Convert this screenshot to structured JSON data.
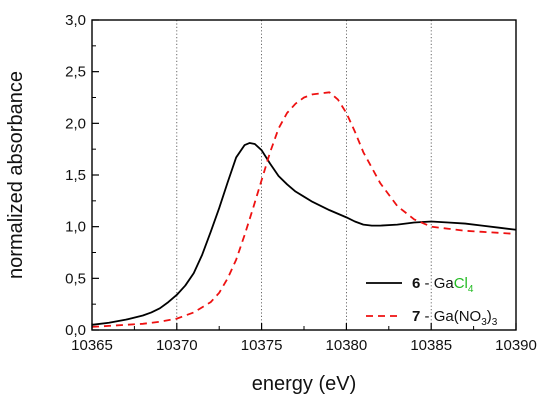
{
  "chart_data": {
    "type": "line",
    "title": "",
    "xlabel": "energy (eV)",
    "ylabel": "normalized absorbance",
    "xlim": [
      10365,
      10390
    ],
    "ylim": [
      0,
      3
    ],
    "xticks": [
      10365,
      10370,
      10375,
      10380,
      10385,
      10390
    ],
    "xtick_labels": [
      "10365",
      "10370",
      "10375",
      "10380",
      "10385",
      "10390"
    ],
    "yticks": [
      0,
      0.5,
      1,
      1.5,
      2,
      2.5,
      3
    ],
    "ytick_labels": [
      "0,0",
      "0,5",
      "1,0",
      "1,5",
      "2,0",
      "2,5",
      "3,0"
    ],
    "vertical_gridlines": [
      10370,
      10375,
      10380,
      10385
    ],
    "grid": "vertical dotted",
    "legend_position": "lower-right",
    "series": [
      {
        "name": "6 - GaCl4",
        "legend_number": "6",
        "legend_sep": " - ",
        "legend_parts": [
          {
            "text": "Ga",
            "sub": false,
            "color": "#111111"
          },
          {
            "text": "Cl",
            "sub": false,
            "color": "#22bb22"
          },
          {
            "text": "4",
            "sub": true,
            "color": "#22bb22"
          }
        ],
        "color": "#000000",
        "style": "solid",
        "x": [
          10365,
          10366,
          10367,
          10368,
          10368.5,
          10369,
          10369.5,
          10370,
          10370.5,
          10371,
          10371.5,
          10372,
          10372.5,
          10373,
          10373.5,
          10374,
          10374.3,
          10374.6,
          10375,
          10375.5,
          10376,
          10376.5,
          10377,
          10377.5,
          10378,
          10379,
          10380,
          10380.5,
          10381,
          10381.5,
          10382,
          10383,
          10384,
          10385,
          10386,
          10387,
          10388,
          10389,
          10390
        ],
        "y": [
          0.05,
          0.07,
          0.1,
          0.14,
          0.17,
          0.21,
          0.27,
          0.34,
          0.43,
          0.55,
          0.73,
          0.95,
          1.18,
          1.43,
          1.67,
          1.79,
          1.81,
          1.8,
          1.74,
          1.61,
          1.49,
          1.41,
          1.34,
          1.29,
          1.24,
          1.16,
          1.09,
          1.05,
          1.02,
          1.01,
          1.01,
          1.02,
          1.04,
          1.05,
          1.04,
          1.03,
          1.01,
          0.99,
          0.97
        ]
      },
      {
        "name": "7 - Ga(NO3)3",
        "legend_number": "7",
        "legend_sep": " - ",
        "legend_parts": [
          {
            "text": "Ga(NO",
            "sub": false,
            "color": "#111111"
          },
          {
            "text": "3",
            "sub": true,
            "color": "#111111"
          },
          {
            "text": ")",
            "sub": false,
            "color": "#111111"
          },
          {
            "text": "3",
            "sub": true,
            "color": "#111111"
          }
        ],
        "color": "#ee1111",
        "style": "dashed",
        "x": [
          10365,
          10366,
          10367,
          10368,
          10369,
          10370,
          10371,
          10372,
          10372.5,
          10373,
          10373.5,
          10374,
          10374.5,
          10375,
          10375.5,
          10376,
          10376.5,
          10377,
          10377.5,
          10378,
          10378.5,
          10379,
          10379.5,
          10380,
          10380.5,
          10381,
          10382,
          10383,
          10384,
          10385,
          10386,
          10387,
          10388,
          10389,
          10390
        ],
        "y": [
          0.03,
          0.04,
          0.05,
          0.06,
          0.08,
          0.11,
          0.17,
          0.27,
          0.36,
          0.5,
          0.68,
          0.92,
          1.18,
          1.45,
          1.72,
          1.95,
          2.1,
          2.19,
          2.25,
          2.28,
          2.29,
          2.3,
          2.23,
          2.1,
          1.92,
          1.72,
          1.42,
          1.2,
          1.07,
          1.0,
          0.98,
          0.96,
          0.95,
          0.94,
          0.93
        ]
      }
    ]
  }
}
